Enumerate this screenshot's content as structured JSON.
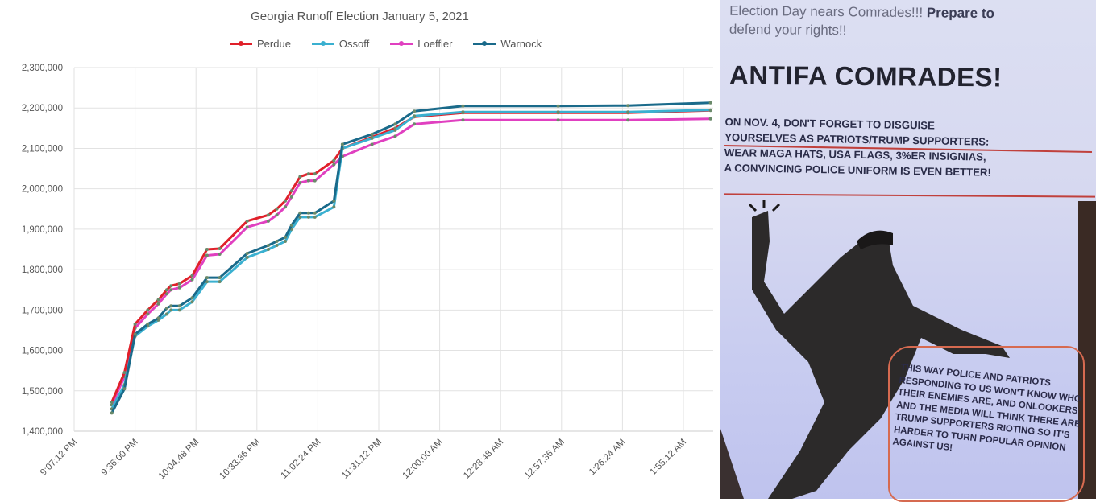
{
  "chart_data": {
    "type": "line",
    "title": "Georgia Runoff Election January 5, 2021",
    "legend_position": "top",
    "grid": true,
    "ylim": [
      1400000,
      2300000
    ],
    "y_ticks": [
      "1,400,000",
      "1,500,000",
      "1,600,000",
      "1,700,000",
      "1,800,000",
      "1,900,000",
      "2,000,000",
      "2,100,000",
      "2,200,000",
      "2,300,000"
    ],
    "x_ticks": [
      "9:07:12 PM",
      "9:36:00 PM",
      "10:04:48 PM",
      "10:33:36 PM",
      "11:02:24 PM",
      "11:31:12 PM",
      "12:00:00 AM",
      "12:28:48 AM",
      "12:57:36 AM",
      "1:26:24 AM",
      "1:55:12 AM"
    ],
    "x": [
      "9:25:00 PM",
      "9:31:00 PM",
      "9:36:00 PM",
      "9:42:00 PM",
      "9:47:00 PM",
      "9:51:00 PM",
      "9:53:00 PM",
      "9:57:00 PM",
      "10:03:00 PM",
      "10:10:00 PM",
      "10:16:00 PM",
      "10:29:00 PM",
      "10:39:00 PM",
      "10:43:00 PM",
      "10:47:00 PM",
      "10:50:00 PM",
      "10:54:00 PM",
      "10:58:00 PM",
      "11:01:00 PM",
      "11:10:00 PM",
      "11:14:00 PM",
      "11:28:00 PM",
      "11:39:00 PM",
      "11:48:00 PM",
      "12:11:00 AM",
      "12:56:00 AM",
      "1:29:00 AM",
      "2:08:00 AM"
    ],
    "series": [
      {
        "name": "Perdue",
        "color": "#e0202a",
        "values": [
          1472000,
          1545000,
          1665000,
          1700000,
          1725000,
          1750000,
          1760000,
          1765000,
          1785000,
          1850000,
          1852000,
          1920000,
          1935000,
          1950000,
          1970000,
          1995000,
          2030000,
          2037000,
          2037000,
          2070000,
          2100000,
          2128000,
          2150000,
          2178000,
          2188000,
          2188000,
          2188000,
          2194000
        ]
      },
      {
        "name": "Ossoff",
        "color": "#3ab0d0",
        "values": [
          1455000,
          1515000,
          1635000,
          1660000,
          1675000,
          1690000,
          1700000,
          1700000,
          1720000,
          1770000,
          1770000,
          1830000,
          1850000,
          1860000,
          1870000,
          1900000,
          1930000,
          1930000,
          1930000,
          1955000,
          2100000,
          2125000,
          2145000,
          2180000,
          2190000,
          2190000,
          2190000,
          2195000
        ]
      },
      {
        "name": "Loeffler",
        "color": "#e040c0",
        "values": [
          1465000,
          1535000,
          1655000,
          1690000,
          1715000,
          1740000,
          1750000,
          1755000,
          1775000,
          1835000,
          1838000,
          1905000,
          1920000,
          1935000,
          1955000,
          1980000,
          2015000,
          2020000,
          2020000,
          2060000,
          2080000,
          2110000,
          2130000,
          2160000,
          2170000,
          2170000,
          2170000,
          2173000
        ]
      },
      {
        "name": "Warnock",
        "color": "#1a6a8a",
        "values": [
          1445000,
          1505000,
          1640000,
          1665000,
          1680000,
          1705000,
          1710000,
          1710000,
          1730000,
          1780000,
          1780000,
          1840000,
          1860000,
          1870000,
          1880000,
          1910000,
          1940000,
          1940000,
          1940000,
          1970000,
          2110000,
          2135000,
          2160000,
          2192000,
          2205000,
          2205000,
          2206000,
          2213000
        ]
      }
    ]
  },
  "flyer": {
    "intro_light": "Election Day nears Comrades!!! ",
    "intro_bold": "Prepare to",
    "intro_line2": "defend your rights!!",
    "headline": "ANTIFA COMRADES!",
    "body_lines": [
      "ON NOV. 4, DON'T FORGET TO DISGUISE",
      "YOURSELVES AS PATRIOTS/TRUMP SUPPORTERS:",
      "WEAR MAGA HATS, USA FLAGS, 3%ER INSIGNIAS,",
      "A CONVINCING POLICE UNIFORM IS EVEN BETTER!"
    ],
    "callout": "THIS WAY POLICE AND PATRIOTS RESPONDING TO US WON'T KNOW WHO THEIR ENEMIES ARE, AND ONLOOKERS AND THE MEDIA WILL THINK THERE ARE TRUMP SUPPORTERS RIOTING SO IT'S HARDER TO TURN POPULAR OPINION AGAINST US!"
  }
}
